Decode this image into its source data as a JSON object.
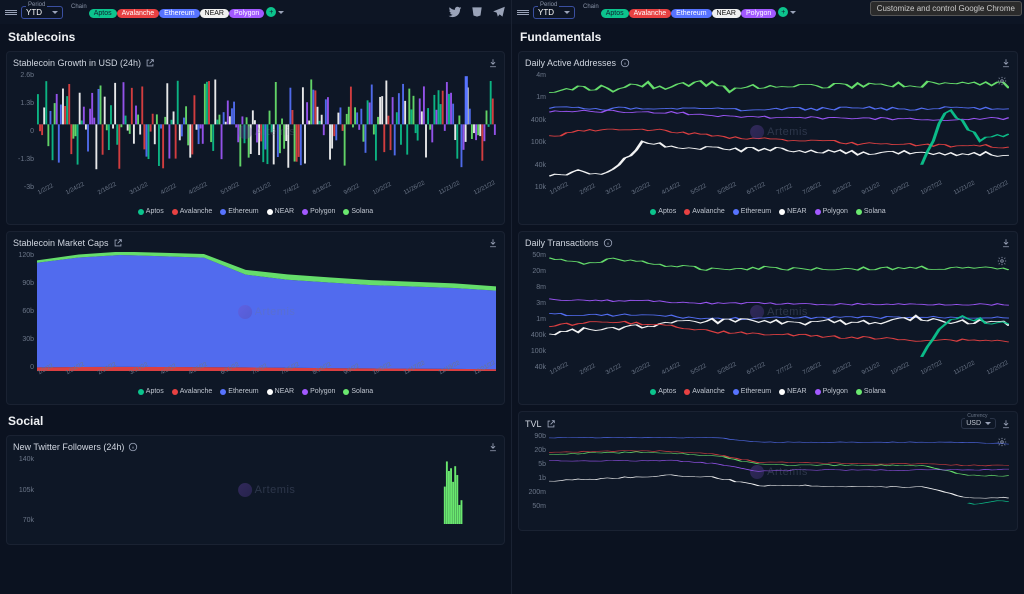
{
  "colors": {
    "bg": "#0b1220",
    "card": "#0e1726",
    "border": "#1a2232",
    "text": "#d0d6e0",
    "aptos": "#0cc48d",
    "avalanche": "#e84142",
    "ethereum": "#5773ff",
    "near": "#ffffff",
    "polygon": "#a259ff",
    "solana": "#6ae86f"
  },
  "period": {
    "label": "Period",
    "value": "YTD"
  },
  "chain_label": "Chain",
  "chains": [
    {
      "label": "Aptos",
      "bg": "#0cc48d",
      "fg": "#102030"
    },
    {
      "label": "Avalanche",
      "bg": "#e84142",
      "fg": "#ffffff"
    },
    {
      "label": "Ethereum",
      "bg": "#5773ff",
      "fg": "#ffffff"
    },
    {
      "label": "NEAR",
      "bg": "#f0f0f0",
      "fg": "#111111"
    },
    {
      "label": "Polygon",
      "bg": "#a259ff",
      "fg": "#ffffff"
    }
  ],
  "chrome_hint": "Customize and control Google Chrome",
  "watermark": "Artemis",
  "left": {
    "section1": "Stablecoins",
    "section2": "Social",
    "card1": {
      "title": "Stablecoin Growth in USD (24h)",
      "yticks": [
        "2.6b",
        "1.3b",
        "0",
        "-1.3b",
        "-3b"
      ],
      "xticks": [
        "1/2/22",
        "1/24/22",
        "2/16/22",
        "3/11/22",
        "4/2/22",
        "4/25/22",
        "5/19/22",
        "6/11/22",
        "7/4/22",
        "8/18/22",
        "9/9/22",
        "10/2/22",
        "11/26/22",
        "11/21/22",
        "12/21/22"
      ]
    },
    "card2": {
      "title": "Stablecoin Market Caps",
      "yticks": [
        "120b",
        "90b",
        "60b",
        "30b",
        "0"
      ],
      "xticks": [
        "1/2/22",
        "1/24/22",
        "2/16/22",
        "3/11/22",
        "4/2/22",
        "4/25/22",
        "6/11/22",
        "7/3/22",
        "7/25/22",
        "8/18/22",
        "9/9/22",
        "10/2/22",
        "11/17/22",
        "11/19/22",
        "12/21/22"
      ]
    },
    "card3": {
      "title": "New Twitter Followers (24h)",
      "yticks": [
        "140k",
        "105k",
        "70k"
      ]
    }
  },
  "right": {
    "section1": "Fundamentals",
    "card1": {
      "title": "Daily Active Addresses",
      "yticks": [
        "4m",
        "1m",
        "400k",
        "100k",
        "40k",
        "10k"
      ],
      "xticks": [
        "1/19/22",
        "2/9/22",
        "3/1/22",
        "3/22/22",
        "4/14/22",
        "5/5/22",
        "5/26/22",
        "6/17/22",
        "7/7/22",
        "7/28/22",
        "8/23/22",
        "9/11/22",
        "10/3/22",
        "10/27/22",
        "11/21/22",
        "12/20/22"
      ]
    },
    "card2": {
      "title": "Daily Transactions",
      "yticks": [
        "50m",
        "20m",
        "8m",
        "3m",
        "1m",
        "400k",
        "100k",
        "40k"
      ],
      "xticks": [
        "1/19/22",
        "2/9/22",
        "3/1/22",
        "3/22/22",
        "4/14/22",
        "5/5/22",
        "5/26/22",
        "6/17/22",
        "7/7/22",
        "7/28/22",
        "8/23/22",
        "9/11/22",
        "10/3/22",
        "10/27/22",
        "11/21/22",
        "12/20/22"
      ]
    },
    "card3": {
      "title": "TVL",
      "currency": {
        "label": "Currency",
        "value": "USD"
      },
      "yticks": [
        "90b",
        "20b",
        "5b",
        "1b",
        "200m",
        "50m"
      ]
    }
  },
  "legend": [
    {
      "label": "Aptos",
      "color": "#0cc48d"
    },
    {
      "label": "Avalanche",
      "color": "#e84142"
    },
    {
      "label": "Ethereum",
      "color": "#5773ff"
    },
    {
      "label": "NEAR",
      "color": "#ffffff"
    },
    {
      "label": "Polygon",
      "color": "#a259ff"
    },
    {
      "label": "Solana",
      "color": "#6ae86f"
    }
  ],
  "chart_data": {
    "growth": {
      "type": "bar-diverging",
      "bar_count": 220,
      "baseline": 0.44,
      "height_range": [
        0.02,
        0.38
      ],
      "colors": [
        "#5773ff",
        "#0cc48d",
        "#a259ff",
        "#6ae86f",
        "#e84142",
        "#ffffff"
      ],
      "spikes": [
        {
          "i": 205,
          "h": 0.92,
          "color": "#5773ff"
        }
      ]
    },
    "marketcaps": {
      "type": "area-stacked",
      "series": [
        {
          "key": "avalanche",
          "color": "#e84142",
          "ys": [
            0.03,
            0.034,
            0.035,
            0.034,
            0.033,
            0.03,
            0.027,
            0.024,
            0.022,
            0.02,
            0.018,
            0.015
          ]
        },
        {
          "key": "ethereum",
          "color": "#5773ff",
          "ys": [
            0.88,
            0.92,
            0.94,
            0.93,
            0.92,
            0.78,
            0.74,
            0.72,
            0.7,
            0.69,
            0.68,
            0.66
          ]
        },
        {
          "key": "solana",
          "color": "#6ae86f",
          "ys": [
            0.02,
            0.025,
            0.028,
            0.03,
            0.03,
            0.04,
            0.045,
            0.043,
            0.042,
            0.04,
            0.038,
            0.036
          ]
        }
      ]
    },
    "twitter": {
      "type": "bar",
      "bar_count": 220,
      "baseline": 1.0,
      "bars": [
        {
          "start": 195,
          "end": 204,
          "heights": [
            0.55,
            0.92,
            0.78,
            0.82,
            0.62,
            0.85,
            0.72,
            0.28,
            0.35
          ],
          "color": "#6ae86f"
        }
      ]
    },
    "daa": {
      "type": "line",
      "scale": "log",
      "series": [
        {
          "key": "solana",
          "color": "#6ae86f",
          "ys": [
            0.2,
            0.12,
            0.14,
            0.1,
            0.12,
            0.09,
            0.15,
            0.11,
            0.1,
            0.12,
            0.11,
            0.13,
            0.1,
            0.12,
            0.1,
            0.12
          ],
          "noise": 0.06
        },
        {
          "key": "ethereum",
          "color": "#5773ff",
          "ys": [
            0.3,
            0.3,
            0.31,
            0.3,
            0.31,
            0.3,
            0.32,
            0.31,
            0.31,
            0.31,
            0.3,
            0.31,
            0.31,
            0.3,
            0.31,
            0.3
          ],
          "noise": 0.025
        },
        {
          "key": "polygon",
          "color": "#a259ff",
          "ys": [
            0.33,
            0.33,
            0.33,
            0.34,
            0.34,
            0.36,
            0.37,
            0.38,
            0.38,
            0.39,
            0.39,
            0.39,
            0.4,
            0.4,
            0.39,
            0.39
          ],
          "noise": 0.02
        },
        {
          "key": "avalanche",
          "color": "#e84142",
          "ys": [
            0.54,
            0.5,
            0.48,
            0.48,
            0.5,
            0.52,
            0.55,
            0.56,
            0.58,
            0.58,
            0.6,
            0.6,
            0.61,
            0.62,
            0.62,
            0.63
          ],
          "noise": 0.025
        },
        {
          "key": "near",
          "color": "#ffffff",
          "ys": [
            0.86,
            0.84,
            0.85,
            0.6,
            0.62,
            0.64,
            0.66,
            0.64,
            0.66,
            0.67,
            0.68,
            0.67,
            0.68,
            0.68,
            0.69,
            0.69
          ],
          "noise": 0.04
        },
        {
          "key": "aptos",
          "color": "#0cc48d",
          "ys": [
            null,
            null,
            null,
            null,
            null,
            null,
            null,
            null,
            null,
            null,
            null,
            null,
            0.86,
            0.3,
            0.56,
            0.52
          ],
          "noise": 0.05
        }
      ]
    },
    "dtx": {
      "type": "line",
      "scale": "log",
      "series": [
        {
          "key": "solana",
          "color": "#6ae86f",
          "ys": [
            0.05,
            0.1,
            0.06,
            0.08,
            0.12,
            0.14,
            0.14,
            0.13,
            0.14,
            0.14,
            0.14,
            0.14,
            0.13,
            0.14,
            0.14,
            0.14
          ],
          "noise": 0.03
        },
        {
          "key": "polygon",
          "color": "#a259ff",
          "ys": [
            0.4,
            0.4,
            0.41,
            0.41,
            0.42,
            0.43,
            0.43,
            0.43,
            0.44,
            0.44,
            0.44,
            0.44,
            0.44,
            0.44,
            0.44,
            0.44
          ],
          "noise": 0.015
        },
        {
          "key": "ethereum",
          "color": "#5773ff",
          "ys": [
            0.52,
            0.53,
            0.53,
            0.53,
            0.54,
            0.56,
            0.56,
            0.56,
            0.55,
            0.55,
            0.55,
            0.55,
            0.55,
            0.55,
            0.55,
            0.55
          ],
          "noise": 0.02
        },
        {
          "key": "near",
          "color": "#ffffff",
          "ys": [
            0.68,
            0.66,
            0.64,
            0.62,
            0.6,
            0.58,
            0.58,
            0.57,
            0.6,
            0.58,
            0.6,
            0.58,
            0.55,
            0.6,
            0.58,
            0.6
          ],
          "noise": 0.04
        },
        {
          "key": "avalanche",
          "color": "#e84142",
          "ys": [
            0.62,
            0.6,
            0.58,
            0.6,
            0.62,
            0.66,
            0.68,
            0.69,
            0.7,
            0.71,
            0.72,
            0.73,
            0.74,
            0.74,
            0.74,
            0.75
          ],
          "noise": 0.025
        },
        {
          "key": "aptos",
          "color": "#0cc48d",
          "ys": [
            null,
            null,
            null,
            null,
            null,
            null,
            null,
            null,
            null,
            null,
            null,
            null,
            0.95,
            0.55,
            0.58,
            0.62
          ],
          "noise": 0.06
        }
      ]
    },
    "tvl": {
      "type": "line",
      "scale": "log",
      "series": [
        {
          "key": "ethereum",
          "color": "#5773ff",
          "ys": [
            0.06,
            0.06,
            0.06,
            0.06,
            0.06,
            0.12,
            0.12,
            0.12,
            0.12,
            0.12,
            0.12,
            0.14
          ],
          "noise": 0.01
        },
        {
          "key": "solana",
          "color": "#6ae86f",
          "ys": [
            0.28,
            0.26,
            0.25,
            0.26,
            0.3,
            0.4,
            0.42,
            0.42,
            0.42,
            0.42,
            0.55,
            0.56
          ],
          "noise": 0.02
        },
        {
          "key": "avalanche",
          "color": "#e84142",
          "ys": [
            0.25,
            0.24,
            0.23,
            0.24,
            0.28,
            0.38,
            0.38,
            0.39,
            0.4,
            0.4,
            0.42,
            0.42
          ],
          "noise": 0.015
        },
        {
          "key": "polygon",
          "color": "#a259ff",
          "ys": [
            0.36,
            0.36,
            0.36,
            0.36,
            0.4,
            0.5,
            0.48,
            0.48,
            0.48,
            0.48,
            0.48,
            0.47
          ],
          "noise": 0.015
        },
        {
          "key": "near",
          "color": "#ffffff",
          "ys": [
            0.62,
            0.6,
            0.57,
            0.55,
            0.58,
            0.68,
            0.68,
            0.69,
            0.7,
            0.7,
            0.84,
            0.84
          ],
          "noise": 0.02
        },
        {
          "key": "aptos",
          "color": "#0cc48d",
          "ys": [
            null,
            null,
            null,
            null,
            null,
            null,
            null,
            null,
            null,
            null,
            0.92,
            0.88
          ],
          "noise": 0.03
        }
      ]
    }
  }
}
